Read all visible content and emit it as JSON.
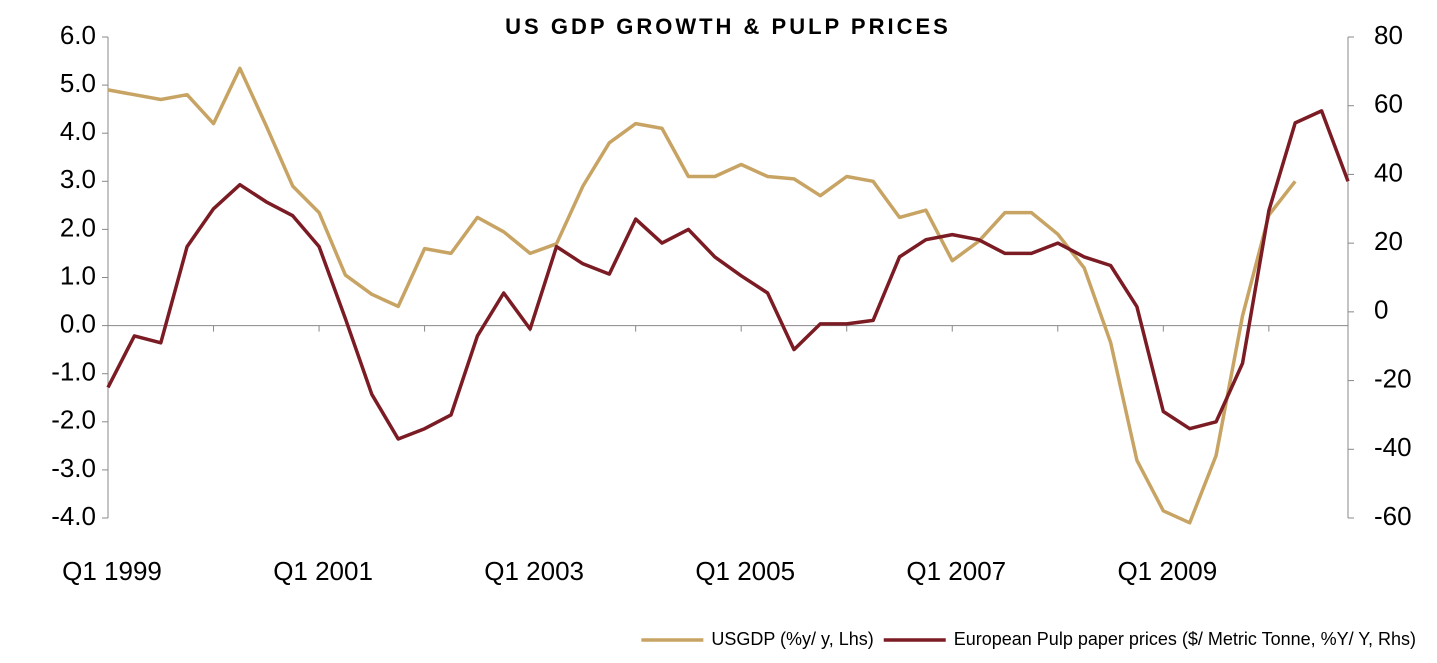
{
  "chart_data": {
    "type": "line",
    "title": "US GDP GROWTH & PULP PRICES",
    "categories": [
      "Q1 1999",
      null,
      null,
      null,
      null,
      null,
      null,
      null,
      "Q1 2001",
      null,
      null,
      null,
      null,
      null,
      null,
      null,
      "Q1 2003",
      null,
      null,
      null,
      null,
      null,
      null,
      null,
      "Q1 2005",
      null,
      null,
      null,
      null,
      null,
      null,
      null,
      "Q1 2007",
      null,
      null,
      null,
      null,
      null,
      null,
      null,
      "Q1 2009",
      null,
      null,
      null,
      null,
      null,
      null,
      null
    ],
    "series": [
      {
        "name": "USGDP (%y/ y, Lhs)",
        "color": "#c8a464",
        "axis": "y",
        "values": [
          4.9,
          4.8,
          4.7,
          4.8,
          4.2,
          5.35,
          4.15,
          2.9,
          2.35,
          1.05,
          0.65,
          0.4,
          1.6,
          1.5,
          2.25,
          1.95,
          1.5,
          1.7,
          2.9,
          3.8,
          4.2,
          4.1,
          3.1,
          3.1,
          3.35,
          3.1,
          3.05,
          2.7,
          3.1,
          3.0,
          2.25,
          2.4,
          1.35,
          1.75,
          2.35,
          2.35,
          1.9,
          1.2,
          -0.35,
          -2.8,
          -3.85,
          -4.1,
          -2.7,
          0.2,
          2.3,
          3.0,
          null,
          null
        ]
      },
      {
        "name": "European Pulp paper prices ($/ Metric Tonne, %Y/ Y, Rhs)",
        "color": "#7b1c24",
        "axis": "y2",
        "values": [
          -22,
          -7,
          -9,
          19,
          30,
          37,
          32,
          28,
          19,
          -2,
          -24,
          -37,
          -34,
          -30,
          -7,
          5.5,
          -5,
          19,
          14,
          11,
          27,
          20,
          24,
          16,
          10.5,
          5.5,
          -11,
          -3.5,
          -3.5,
          -2.5,
          16,
          21,
          22.5,
          21,
          17,
          17,
          20,
          16,
          13.5,
          1.5,
          -29,
          -34,
          -32,
          -15,
          29.5,
          55,
          58.5,
          38
        ]
      }
    ],
    "ylim": [
      -4,
      6
    ],
    "yticks": [
      {
        "value": -4,
        "label": "-4.0"
      },
      {
        "value": -3,
        "label": "-3.0"
      },
      {
        "value": -2,
        "label": "-2.0"
      },
      {
        "value": -1,
        "label": "-1.0"
      },
      {
        "value": 0,
        "label": "0.0"
      },
      {
        "value": 1,
        "label": "1.0"
      },
      {
        "value": 2,
        "label": "2.0"
      },
      {
        "value": 3,
        "label": "3.0"
      },
      {
        "value": 4,
        "label": "4.0"
      },
      {
        "value": 5,
        "label": "5.0"
      },
      {
        "value": 6,
        "label": "6.0"
      }
    ],
    "y2lim": [
      -60,
      80
    ],
    "y2ticks": [
      -60,
      -40,
      -20,
      0,
      20,
      40,
      60,
      80
    ],
    "legend": "bottom-right"
  }
}
